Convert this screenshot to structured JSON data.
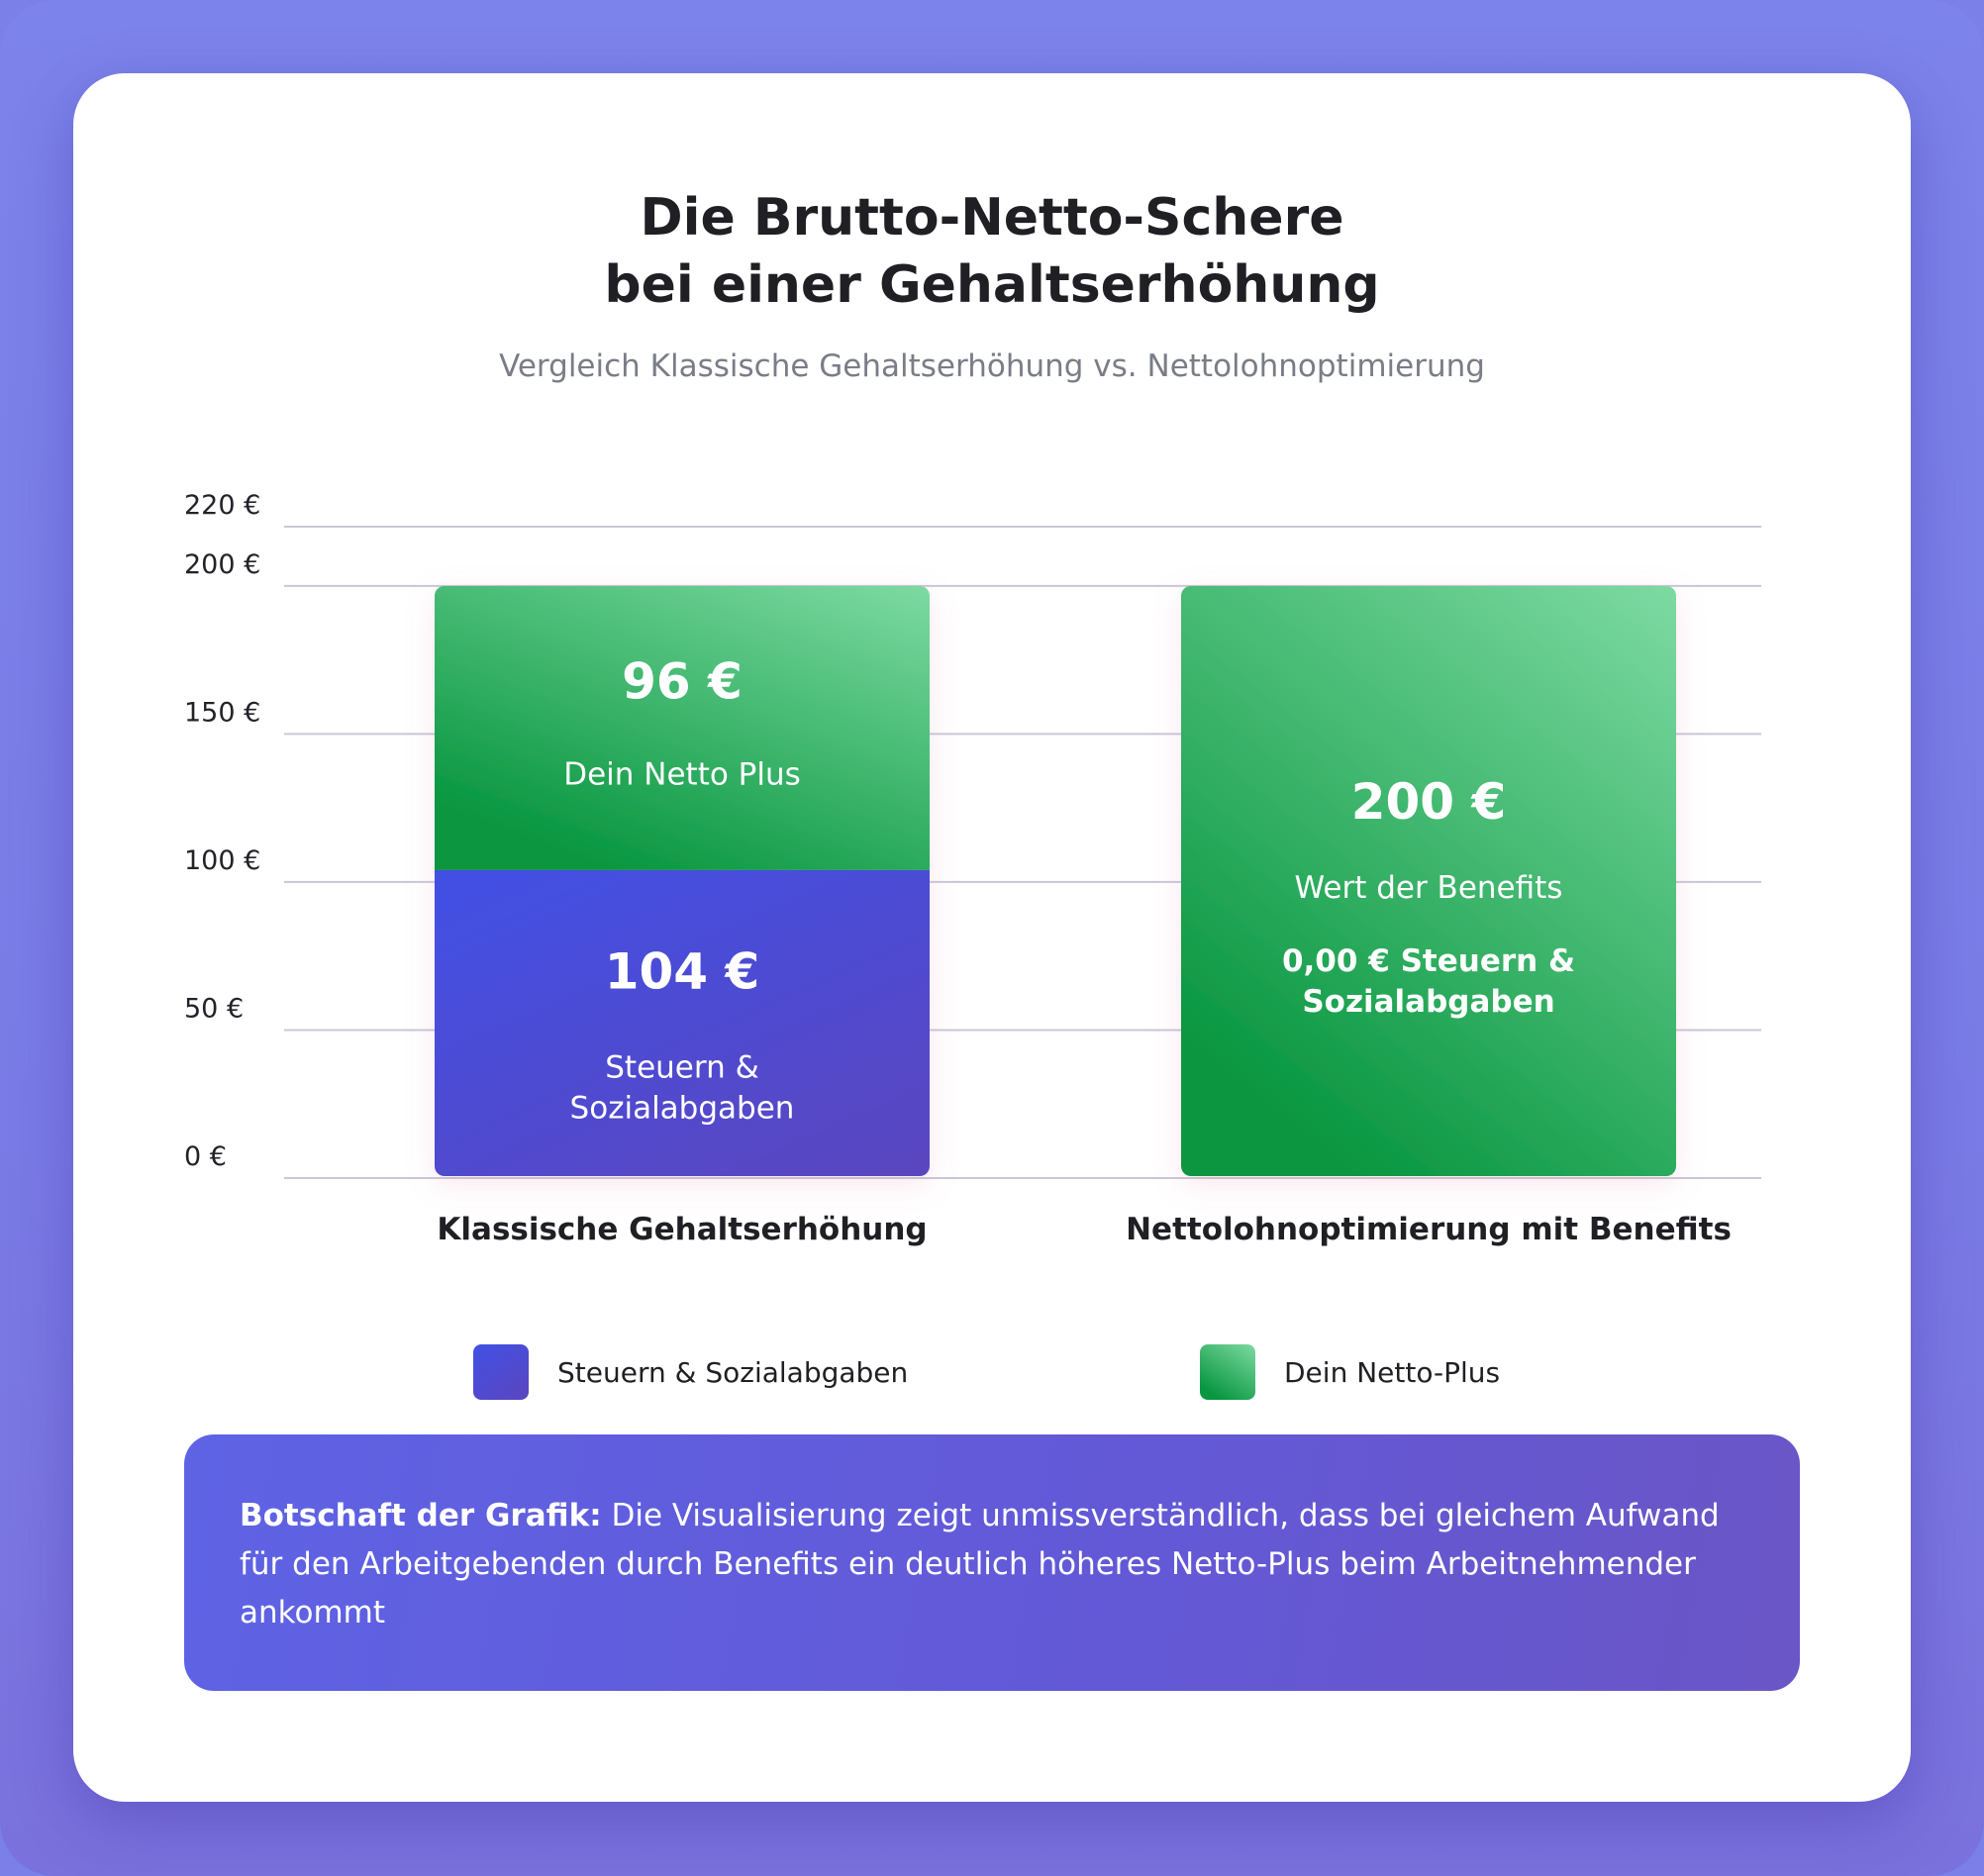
{
  "title_line1": "Die Brutto-Netto-Schere",
  "title_line2": "bei einer Gehaltserhöhung",
  "subtitle": "Vergleich Klassische Gehaltserhöhung vs. Nettolohnoptimierung",
  "chart_data": {
    "type": "bar",
    "stacked": true,
    "categories": [
      "Klassische Gehaltserhöhung",
      "Nettolohnoptimierung mit Benefits"
    ],
    "y_ticks": [
      0,
      50,
      100,
      150,
      200,
      220
    ],
    "y_tick_labels": [
      "0 €",
      "50 €",
      "100 €",
      "150 €",
      "200 €",
      "220 €"
    ],
    "ylim": [
      0,
      220
    ],
    "grid": true,
    "legend_position": "bottom",
    "series": [
      {
        "name": "Steuern &  Sozialabgaben",
        "color": "#4a4ee0",
        "values": [
          104,
          0
        ],
        "value_labels": [
          "104 €",
          ""
        ],
        "segment_labels": [
          "Steuern &|Sozialabgaben",
          ""
        ]
      },
      {
        "name": "Dein Netto-Plus",
        "color": "#1aa455",
        "values": [
          96,
          200
        ],
        "value_labels": [
          "96 €",
          "200 €"
        ],
        "segment_labels": [
          "Dein Netto Plus",
          "Wert der Benefits"
        ],
        "notes": [
          "",
          "0,00 € Steuern &|Sozialabgaben"
        ]
      }
    ]
  },
  "message": {
    "lead": "Botschaft der Grafik:",
    "text": " Die Visualisierung zeigt unmissverständlich, dass bei gleichem Aufwand für den Arbeitgebenden durch Benefits ein deutlich höheres Netto-Plus beim Arbeitnehmender ankommt"
  }
}
